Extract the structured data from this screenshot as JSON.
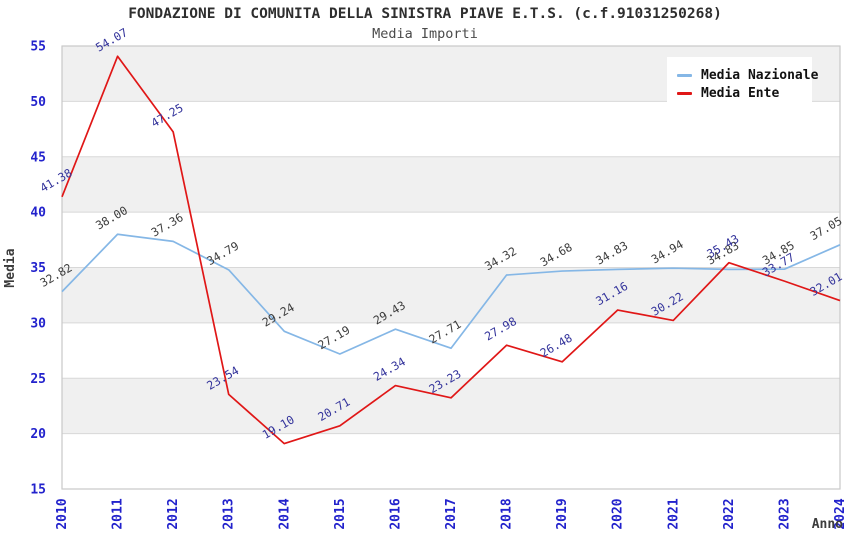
{
  "header": {
    "title": "FONDAZIONE DI COMUNITA DELLA SINISTRA PIAVE E.T.S. (c.f.91031250268)",
    "subtitle": "Media Importi"
  },
  "legend": {
    "position": "top-right",
    "items": [
      {
        "label": "Media Nazionale",
        "color": "#85b7e6"
      },
      {
        "label": "Media Ente",
        "color": "#e01717"
      }
    ]
  },
  "chart_data": {
    "type": "line",
    "title": "FONDAZIONE DI COMUNITA DELLA SINISTRA PIAVE E.T.S. (c.f.91031250268)",
    "subtitle": "Media Importi",
    "xlabel": "Anno",
    "ylabel": "Media",
    "categories": [
      "2010",
      "2011",
      "2012",
      "2013",
      "2014",
      "2015",
      "2016",
      "2017",
      "2018",
      "2019",
      "2020",
      "2021",
      "2022",
      "2023",
      "2024"
    ],
    "series": [
      {
        "name": "Media Nazionale",
        "color": "#85b7e6",
        "label_color": "#3c3c3c",
        "values": [
          32.82,
          38.0,
          37.36,
          34.79,
          29.24,
          27.19,
          29.43,
          27.71,
          34.32,
          34.68,
          34.83,
          34.94,
          34.83,
          34.85,
          37.05
        ]
      },
      {
        "name": "Media Ente",
        "color": "#e01717",
        "label_color": "#33339b",
        "values": [
          41.38,
          54.07,
          47.25,
          23.54,
          19.1,
          20.71,
          24.34,
          23.23,
          27.98,
          26.48,
          31.16,
          30.22,
          35.43,
          33.77,
          32.01
        ]
      }
    ],
    "ylim": [
      15,
      55
    ],
    "yticks": [
      15,
      20,
      25,
      30,
      35,
      40,
      45,
      50,
      55
    ],
    "grid": "horizontal-bands",
    "legend_position": "top-right",
    "tick_color": "#2222cc",
    "axis_label_color": "#3c3c3c",
    "band_color": "#f0f0f0",
    "grid_color": "#d8d8d8",
    "border_color": "#c9c9c9",
    "background_color": "#ffffff"
  }
}
